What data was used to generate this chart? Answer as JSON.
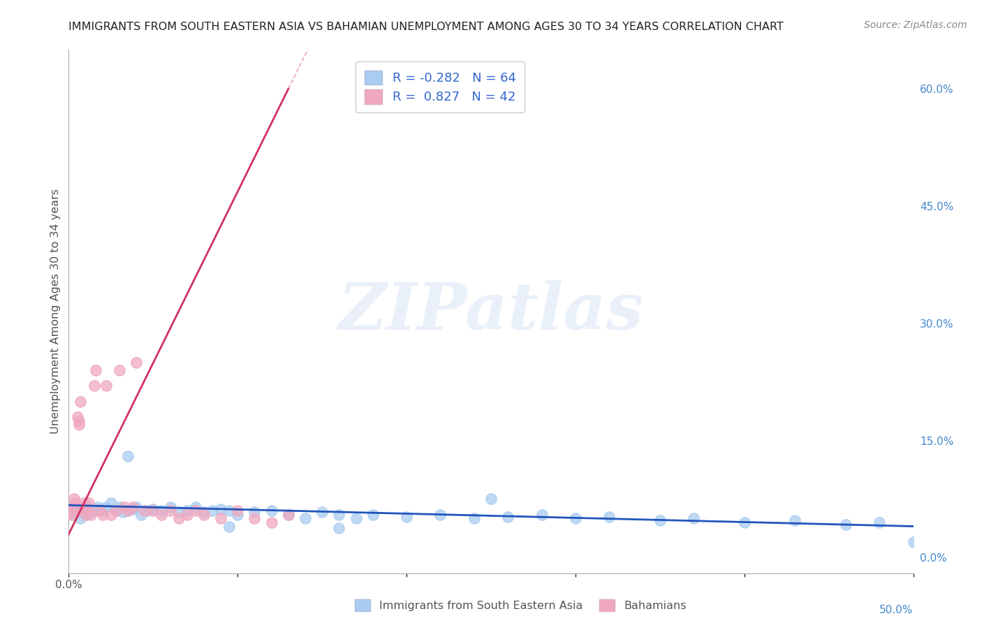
{
  "title": "IMMIGRANTS FROM SOUTH EASTERN ASIA VS BAHAMIAN UNEMPLOYMENT AMONG AGES 30 TO 34 YEARS CORRELATION CHART",
  "source": "Source: ZipAtlas.com",
  "ylabel": "Unemployment Among Ages 30 to 34 years",
  "watermark": "ZIPatlas",
  "legend1_label": "Immigrants from South Eastern Asia",
  "legend2_label": "Bahamians",
  "R1": -0.282,
  "N1": 64,
  "R2": 0.827,
  "N2": 42,
  "blue_color": "#aaccf0",
  "pink_color": "#f0a8c0",
  "blue_line_color": "#2255bb",
  "pink_line_color": "#d03060",
  "blue_scatter_x": [
    0.001,
    0.002,
    0.003,
    0.004,
    0.005,
    0.006,
    0.007,
    0.008,
    0.009,
    0.01,
    0.011,
    0.012,
    0.013,
    0.015,
    0.017,
    0.018,
    0.02,
    0.022,
    0.025,
    0.028,
    0.03,
    0.032,
    0.035,
    0.038,
    0.04,
    0.043,
    0.047,
    0.05,
    0.055,
    0.06,
    0.065,
    0.07,
    0.075,
    0.08,
    0.085,
    0.09,
    0.095,
    0.1,
    0.11,
    0.12,
    0.13,
    0.14,
    0.15,
    0.16,
    0.17,
    0.18,
    0.2,
    0.22,
    0.24,
    0.26,
    0.28,
    0.3,
    0.32,
    0.35,
    0.37,
    0.4,
    0.43,
    0.46,
    0.48,
    0.5,
    0.035,
    0.25,
    0.095,
    0.16
  ],
  "blue_scatter_y": [
    0.06,
    0.065,
    0.055,
    0.06,
    0.058,
    0.062,
    0.05,
    0.06,
    0.065,
    0.055,
    0.06,
    0.065,
    0.058,
    0.06,
    0.065,
    0.062,
    0.06,
    0.065,
    0.07,
    0.06,
    0.065,
    0.058,
    0.06,
    0.062,
    0.065,
    0.055,
    0.06,
    0.062,
    0.06,
    0.065,
    0.058,
    0.06,
    0.065,
    0.058,
    0.06,
    0.062,
    0.06,
    0.055,
    0.058,
    0.06,
    0.055,
    0.05,
    0.058,
    0.055,
    0.05,
    0.055,
    0.052,
    0.055,
    0.05,
    0.052,
    0.055,
    0.05,
    0.052,
    0.048,
    0.05,
    0.045,
    0.048,
    0.042,
    0.045,
    0.02,
    0.13,
    0.075,
    0.04,
    0.038
  ],
  "pink_scatter_x": [
    0.001,
    0.002,
    0.003,
    0.003,
    0.004,
    0.004,
    0.005,
    0.005,
    0.006,
    0.006,
    0.007,
    0.008,
    0.009,
    0.01,
    0.011,
    0.012,
    0.013,
    0.015,
    0.016,
    0.018,
    0.02,
    0.022,
    0.025,
    0.028,
    0.03,
    0.033,
    0.035,
    0.038,
    0.04,
    0.045,
    0.05,
    0.055,
    0.06,
    0.065,
    0.07,
    0.075,
    0.08,
    0.09,
    0.1,
    0.11,
    0.12,
    0.13
  ],
  "pink_scatter_y": [
    0.06,
    0.055,
    0.065,
    0.075,
    0.065,
    0.07,
    0.06,
    0.18,
    0.17,
    0.175,
    0.2,
    0.065,
    0.07,
    0.055,
    0.06,
    0.07,
    0.055,
    0.22,
    0.24,
    0.06,
    0.055,
    0.22,
    0.055,
    0.06,
    0.24,
    0.065,
    0.06,
    0.065,
    0.25,
    0.06,
    0.06,
    0.055,
    0.06,
    0.05,
    0.055,
    0.06,
    0.055,
    0.05,
    0.06,
    0.05,
    0.045,
    0.055
  ],
  "blue_trend_x0": 0.0,
  "blue_trend_y0": 0.067,
  "blue_trend_x1": 0.5,
  "blue_trend_y1": 0.04,
  "pink_trend_x0": 0.0,
  "pink_trend_y0": 0.03,
  "pink_trend_x1": 0.13,
  "pink_trend_y1": 0.6,
  "xlim": [
    0.0,
    0.5
  ],
  "ylim": [
    -0.02,
    0.65
  ],
  "yticks": [
    0.0,
    0.15,
    0.3,
    0.45,
    0.6
  ],
  "yticklabels": [
    "0.0%",
    "15.0%",
    "30.0%",
    "45.0%",
    "60.0%"
  ],
  "background_color": "#ffffff",
  "grid_color": "#cccccc"
}
